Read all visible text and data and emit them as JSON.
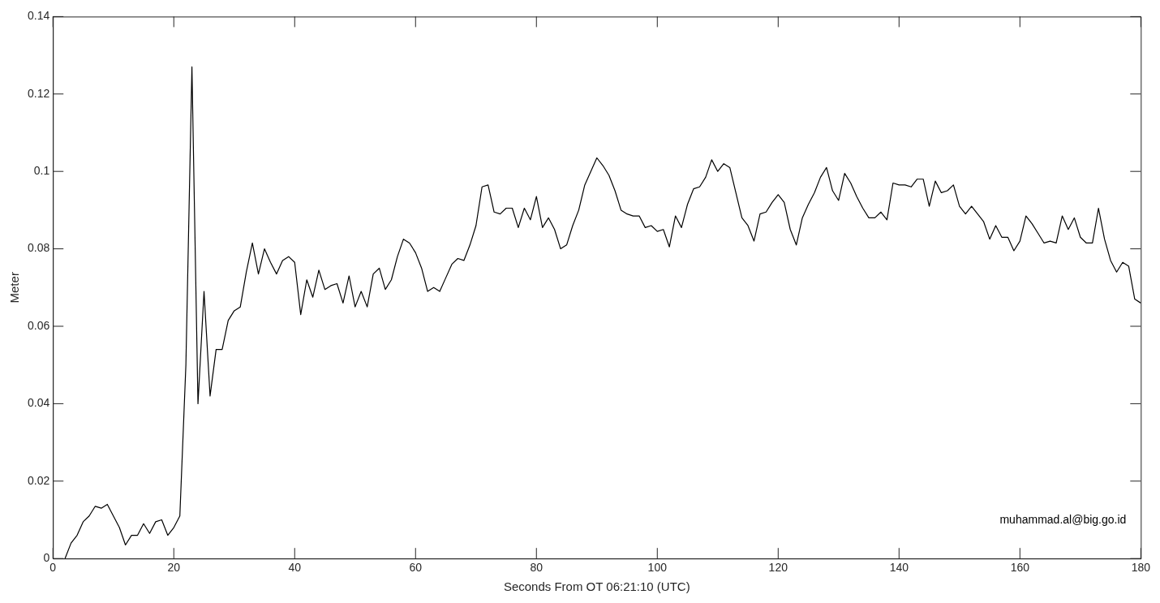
{
  "chart_data": {
    "type": "line",
    "xlabel": "Seconds From OT 06:21:10 (UTC)",
    "ylabel": "Meter",
    "annotations": [
      "muhammad.al@big.go.id"
    ],
    "xlim": [
      0,
      180
    ],
    "xticks": [
      0,
      20,
      40,
      60,
      80,
      100,
      120,
      140,
      160,
      180
    ],
    "ylim": [
      0,
      0.14
    ],
    "yticks": [
      0,
      0.02,
      0.04,
      0.06,
      0.08,
      0.1,
      0.12,
      0.14
    ],
    "grid": false,
    "legend": false,
    "marker": "none",
    "line_style": "solid",
    "series": [
      {
        "color": "#000000",
        "x": [
          2,
          3,
          4,
          5,
          6,
          7,
          8,
          9,
          10,
          11,
          12,
          13,
          14,
          15,
          16,
          17,
          18,
          19,
          20,
          21,
          22,
          23,
          24,
          25,
          26,
          27,
          28,
          29,
          30,
          31,
          32,
          33,
          34,
          35,
          36,
          37,
          38,
          39,
          40,
          41,
          42,
          43,
          44,
          45,
          46,
          47,
          48,
          49,
          50,
          51,
          52,
          53,
          54,
          55,
          56,
          57,
          58,
          59,
          60,
          61,
          62,
          63,
          64,
          65,
          66,
          67,
          68,
          69,
          70,
          71,
          72,
          73,
          74,
          75,
          76,
          77,
          78,
          79,
          80,
          81,
          82,
          83,
          84,
          85,
          86,
          87,
          88,
          89,
          90,
          91,
          92,
          93,
          94,
          95,
          96,
          97,
          98,
          99,
          100,
          101,
          102,
          103,
          104,
          105,
          106,
          107,
          108,
          109,
          110,
          111,
          112,
          113,
          114,
          115,
          116,
          117,
          118,
          119,
          120,
          121,
          122,
          123,
          124,
          125,
          126,
          127,
          128,
          129,
          130,
          131,
          132,
          133,
          134,
          135,
          136,
          137,
          138,
          139,
          140,
          141,
          142,
          143,
          144,
          145,
          146,
          147,
          148,
          149,
          150,
          151,
          152,
          153,
          154,
          155,
          156,
          157,
          158,
          159,
          160,
          161,
          162,
          163,
          164,
          165,
          166,
          167,
          168,
          169,
          170,
          171,
          172,
          173,
          174,
          175,
          176,
          177,
          178,
          179,
          180
        ],
        "values": [
          0,
          0.004,
          0.006,
          0.0095,
          0.011,
          0.0135,
          0.013,
          0.014,
          0.011,
          0.008,
          0.0035,
          0.006,
          0.006,
          0.009,
          0.0065,
          0.0095,
          0.01,
          0.006,
          0.008,
          0.011,
          0.05,
          0.127,
          0.04,
          0.069,
          0.042,
          0.054,
          0.054,
          0.0615,
          0.064,
          0.065,
          0.074,
          0.0815,
          0.0735,
          0.08,
          0.0765,
          0.0735,
          0.077,
          0.078,
          0.0765,
          0.063,
          0.072,
          0.0675,
          0.0745,
          0.0695,
          0.0705,
          0.071,
          0.066,
          0.073,
          0.065,
          0.069,
          0.065,
          0.0735,
          0.075,
          0.0695,
          0.072,
          0.078,
          0.0825,
          0.0815,
          0.079,
          0.075,
          0.069,
          0.07,
          0.069,
          0.0725,
          0.076,
          0.0775,
          0.077,
          0.081,
          0.086,
          0.096,
          0.0965,
          0.0895,
          0.089,
          0.0905,
          0.0905,
          0.0855,
          0.0905,
          0.0875,
          0.0935,
          0.0855,
          0.088,
          0.085,
          0.08,
          0.081,
          0.086,
          0.09,
          0.0965,
          0.1,
          0.1035,
          0.1015,
          0.099,
          0.095,
          0.09,
          0.089,
          0.0885,
          0.0885,
          0.0855,
          0.086,
          0.0845,
          0.085,
          0.0805,
          0.0885,
          0.0855,
          0.0915,
          0.0955,
          0.096,
          0.0985,
          0.103,
          0.1,
          0.102,
          0.101,
          0.0945,
          0.088,
          0.086,
          0.082,
          0.089,
          0.0895,
          0.092,
          0.094,
          0.092,
          0.085,
          0.081,
          0.088,
          0.0915,
          0.0945,
          0.0985,
          0.101,
          0.095,
          0.0925,
          0.0995,
          0.097,
          0.0935,
          0.0905,
          0.088,
          0.088,
          0.0895,
          0.0875,
          0.097,
          0.0965,
          0.0965,
          0.096,
          0.098,
          0.098,
          0.091,
          0.0975,
          0.0945,
          0.095,
          0.0965,
          0.091,
          0.089,
          0.091,
          0.089,
          0.087,
          0.0825,
          0.086,
          0.083,
          0.083,
          0.0795,
          0.082,
          0.0885,
          0.0865,
          0.084,
          0.0815,
          0.082,
          0.0815,
          0.0885,
          0.085,
          0.088,
          0.083,
          0.0815,
          0.0815,
          0.0905,
          0.0825,
          0.077,
          0.074,
          0.0765,
          0.0755,
          0.067,
          0.066
        ]
      }
    ]
  }
}
